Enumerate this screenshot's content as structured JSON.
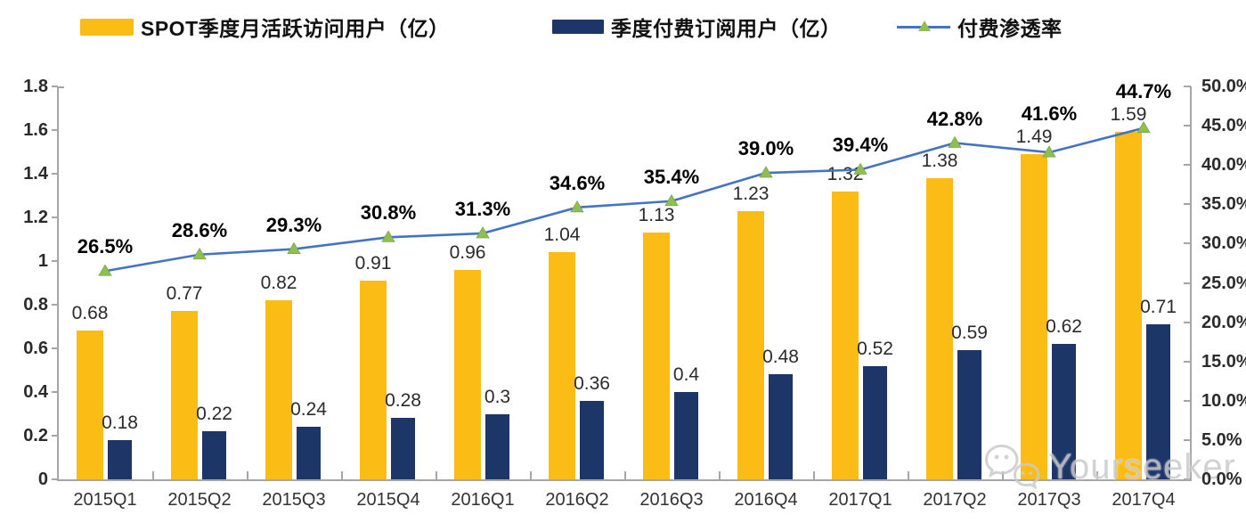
{
  "legend": {
    "items": [
      {
        "label": "SPOT季度月活跃访问用户（亿）",
        "color": "#FBBC16",
        "type": "bar"
      },
      {
        "label": "季度付费订阅用户（亿）",
        "color": "#1C3667",
        "type": "bar"
      },
      {
        "label": "付费渗透率",
        "type": "line",
        "line_color": "#4472C4",
        "marker_color": "#8FBE53"
      }
    ]
  },
  "watermark": {
    "text": "Yourseeker",
    "icon": "wechat-icon"
  },
  "chart_data": {
    "type": "bar",
    "title": "",
    "categories": [
      "2015Q1",
      "2015Q2",
      "2015Q3",
      "2015Q4",
      "2016Q1",
      "2016Q2",
      "2016Q3",
      "2016Q4",
      "2017Q1",
      "2017Q2",
      "2017Q3",
      "2017Q4"
    ],
    "series": [
      {
        "name": "SPOT季度月活跃访问用户（亿）",
        "type": "bar",
        "axis": "left",
        "color": "#FBBC16",
        "values": [
          0.68,
          0.77,
          0.82,
          0.91,
          0.96,
          1.04,
          1.13,
          1.23,
          1.32,
          1.38,
          1.49,
          1.59
        ],
        "labels": [
          "0.68",
          "0.77",
          "0.82",
          "0.91",
          "0.96",
          "1.04",
          "1.13",
          "1.23",
          "1.32",
          "1.38",
          "1.49",
          "1.59"
        ]
      },
      {
        "name": "季度付费订阅用户（亿）",
        "type": "bar",
        "axis": "left",
        "color": "#1C3667",
        "values": [
          0.18,
          0.22,
          0.24,
          0.28,
          0.3,
          0.36,
          0.4,
          0.48,
          0.52,
          0.59,
          0.62,
          0.71
        ],
        "labels": [
          "0.18",
          "0.22",
          "0.24",
          "0.28",
          "0.3",
          "0.36",
          "0.4",
          "0.48",
          "0.52",
          "0.59",
          "0.62",
          "0.71"
        ]
      },
      {
        "name": "付费渗透率",
        "type": "line",
        "axis": "right",
        "color": "#4472C4",
        "marker": "triangle-up",
        "marker_color": "#8FBE53",
        "values": [
          26.5,
          28.6,
          29.3,
          30.8,
          31.3,
          34.6,
          35.4,
          39.0,
          39.4,
          42.8,
          41.6,
          44.7
        ],
        "labels": [
          "26.5%",
          "28.6%",
          "29.3%",
          "30.8%",
          "31.3%",
          "34.6%",
          "35.4%",
          "39.0%",
          "39.4%",
          "42.8%",
          "41.6%",
          "44.7%"
        ]
      }
    ],
    "left_axis": {
      "min": 0,
      "max": 1.8,
      "step": 0.2,
      "labels": [
        "0",
        "0.2",
        "0.4",
        "0.6",
        "0.8",
        "1",
        "1.2",
        "1.4",
        "1.6",
        "1.8"
      ]
    },
    "right_axis": {
      "min": 0,
      "max": 50,
      "step": 5,
      "labels": [
        "0.0%",
        "5.0%",
        "10.0%",
        "15.0%",
        "20.0%",
        "25.0%",
        "30.0%",
        "35.0%",
        "40.0%",
        "45.0%",
        "50.0%"
      ]
    },
    "grid": false,
    "legend_position": "top"
  }
}
